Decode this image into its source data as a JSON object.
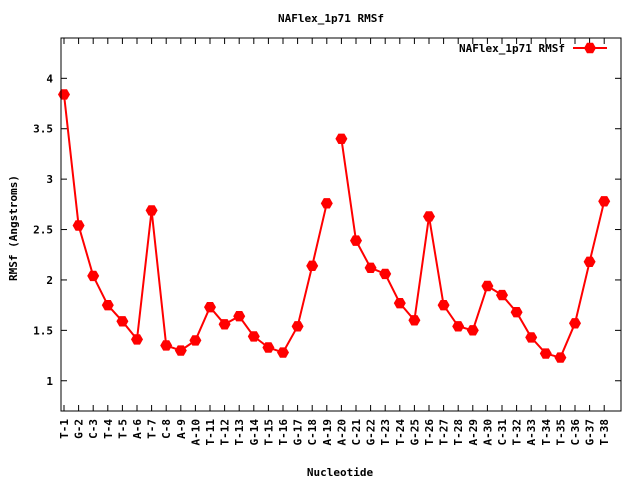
{
  "chart_data": {
    "type": "line",
    "title": "NAFlex_1p71 RMSf",
    "xlabel": "Nucleotide",
    "ylabel": "RMSf (Angstroms)",
    "ylim": [
      0.7,
      4.4
    ],
    "yticks": [
      1,
      1.5,
      2,
      2.5,
      3,
      3.5,
      4
    ],
    "ytick_labels": [
      "1",
      "1.5",
      "2",
      "2.5",
      "3",
      "3.5",
      "4"
    ],
    "legend_position": "top-right",
    "grid": false,
    "series": [
      {
        "name": "NAFlex_1p71 RMSf",
        "color": "#ff0000",
        "marker": "hexagon",
        "segments": [
          {
            "x": [
              1,
              2,
              3,
              4,
              5,
              6,
              7,
              8,
              9,
              10,
              11,
              12,
              13,
              14,
              15,
              16,
              17,
              18,
              19
            ],
            "y": [
              3.84,
              2.54,
              2.04,
              1.75,
              1.59,
              1.41,
              2.69,
              1.35,
              1.3,
              1.4,
              1.73,
              1.56,
              1.64,
              1.44,
              1.33,
              1.28,
              1.54,
              2.14,
              2.76
            ]
          },
          {
            "x": [
              20,
              21,
              22,
              23,
              24,
              25,
              26,
              27,
              28,
              29,
              30,
              31,
              32,
              33,
              34,
              35,
              36,
              37,
              38
            ],
            "y": [
              3.4,
              2.39,
              2.12,
              2.06,
              1.77,
              1.6,
              2.63,
              1.75,
              1.54,
              1.5,
              1.94,
              1.85,
              1.68,
              1.43,
              1.27,
              1.23,
              1.57,
              2.18,
              2.78
            ]
          }
        ]
      }
    ],
    "categories": [
      "T-1",
      "G-2",
      "C-3",
      "T-4",
      "T-5",
      "A-6",
      "T-7",
      "C-8",
      "A-9",
      "A-10",
      "T-11",
      "T-12",
      "T-13",
      "G-14",
      "T-15",
      "T-16",
      "G-17",
      "C-18",
      "A-19",
      "A-20",
      "C-21",
      "G-22",
      "T-23",
      "T-24",
      "G-25",
      "T-26",
      "T-27",
      "T-28",
      "A-29",
      "A-30",
      "C-31",
      "T-32",
      "A-33",
      "T-34",
      "T-35",
      "C-36",
      "G-37",
      "T-38"
    ]
  }
}
